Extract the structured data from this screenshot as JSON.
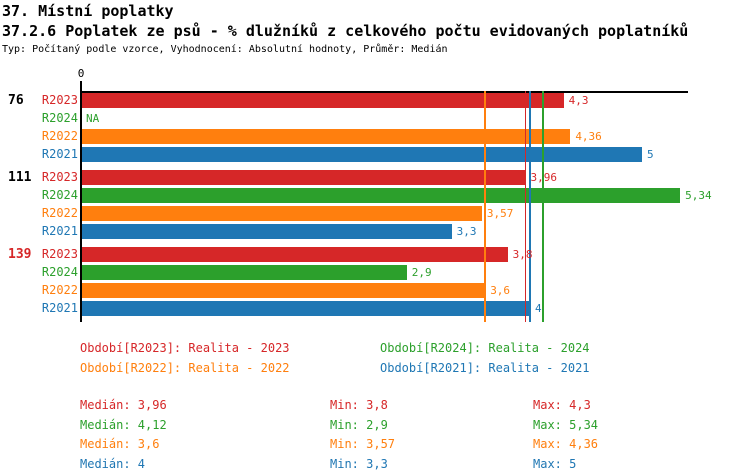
{
  "header": {
    "title1": "37. Místní poplatky",
    "title2": "37.2.6 Poplatek ze psů - % dlužníků z celkového počtu evidovaných poplatníků",
    "subtitle": "Typ: Počítaný podle vzorce, Vyhodnocení: Absolutní hodnoty, Průměr: Medián"
  },
  "colors": {
    "R2023": "#d62728",
    "R2024": "#2ca02c",
    "R2022": "#ff7f0e",
    "R2021": "#1f77b4",
    "axis": "#000000",
    "highlight": "#d62728"
  },
  "chart_data": {
    "type": "bar",
    "orientation": "horizontal",
    "title": "37.2.6 Poplatek ze psů - % dlužníků z celkového počtu evidovaných poplatníků",
    "x_axis": {
      "tick_labels": [
        "0"
      ],
      "range": [
        0,
        5.41
      ],
      "grid": false
    },
    "series_order": [
      "R2023",
      "R2024",
      "R2022",
      "R2021"
    ],
    "groups": [
      {
        "label": "76",
        "highlighted": false,
        "bars": [
          {
            "series": "R2023",
            "value": 4.3,
            "value_label": "4,3"
          },
          {
            "series": "R2024",
            "value": null,
            "value_label": "NA"
          },
          {
            "series": "R2022",
            "value": 4.36,
            "value_label": "4,36"
          },
          {
            "series": "R2021",
            "value": 5,
            "value_label": "5"
          }
        ]
      },
      {
        "label": "111",
        "highlighted": false,
        "bars": [
          {
            "series": "R2023",
            "value": 3.96,
            "value_label": "3,96"
          },
          {
            "series": "R2024",
            "value": 5.34,
            "value_label": "5,34"
          },
          {
            "series": "R2022",
            "value": 3.57,
            "value_label": "3,57"
          },
          {
            "series": "R2021",
            "value": 3.3,
            "value_label": "3,3"
          }
        ]
      },
      {
        "label": "139",
        "highlighted": true,
        "bars": [
          {
            "series": "R2023",
            "value": 3.8,
            "value_label": "3,8"
          },
          {
            "series": "R2024",
            "value": 2.9,
            "value_label": "2,9"
          },
          {
            "series": "R2022",
            "value": 3.6,
            "value_label": "3,6"
          },
          {
            "series": "R2021",
            "value": 4,
            "value_label": "4"
          }
        ]
      }
    ],
    "median_lines": [
      {
        "series": "R2022",
        "value": 3.6
      },
      {
        "series": "R2023",
        "value": 3.96
      },
      {
        "series": "R2021",
        "value": 4
      },
      {
        "series": "R2024",
        "value": 4.12
      }
    ],
    "legend": [
      {
        "series": "R2023",
        "text": "Období[R2023]: Realita - 2023",
        "col": 0,
        "row": 0
      },
      {
        "series": "R2024",
        "text": "Období[R2024]: Realita - 2024",
        "col": 1,
        "row": 0
      },
      {
        "series": "R2022",
        "text": "Období[R2022]: Realita - 2022",
        "col": 0,
        "row": 1
      },
      {
        "series": "R2021",
        "text": "Období[R2021]: Realita - 2021",
        "col": 1,
        "row": 1
      }
    ],
    "stats": [
      {
        "series": "R2023",
        "median": "Medián: 3,96",
        "min": "Min: 3,8",
        "max": "Max: 4,3"
      },
      {
        "series": "R2024",
        "median": "Medián: 4,12",
        "min": "Min: 2,9",
        "max": "Max: 5,34"
      },
      {
        "series": "R2022",
        "median": "Medián: 3,6",
        "min": "Min: 3,57",
        "max": "Max: 4,36"
      },
      {
        "series": "R2021",
        "median": "Medián: 4",
        "min": "Min: 3,3",
        "max": "Max: 5"
      }
    ]
  }
}
